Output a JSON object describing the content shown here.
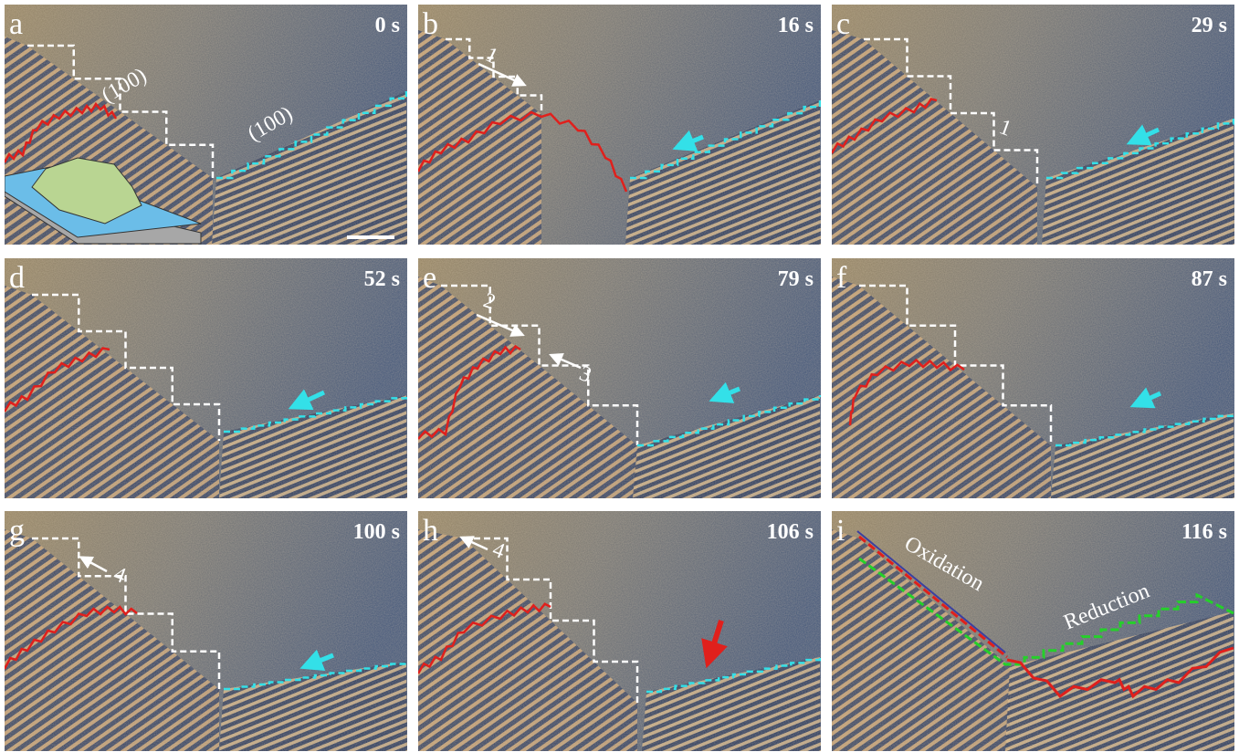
{
  "panels": [
    {
      "letter": "a",
      "time": "0 s",
      "labels": [
        "(100)",
        "(100)"
      ]
    },
    {
      "letter": "b",
      "time": "16 s",
      "labels": [
        "1"
      ]
    },
    {
      "letter": "c",
      "time": "29 s",
      "labels": [
        "1"
      ]
    },
    {
      "letter": "d",
      "time": "52 s"
    },
    {
      "letter": "e",
      "time": "79 s",
      "labels": [
        "2",
        "3"
      ]
    },
    {
      "letter": "f",
      "time": "87 s"
    },
    {
      "letter": "g",
      "time": "100 s",
      "labels": [
        "4"
      ]
    },
    {
      "letter": "h",
      "time": "106 s",
      "labels": [
        "4"
      ]
    },
    {
      "letter": "i",
      "time": "116 s",
      "labels": [
        "Oxidation",
        "Reduction"
      ]
    }
  ]
}
